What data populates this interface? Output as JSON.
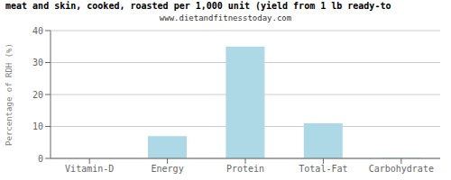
{
  "chart_data": {
    "type": "bar",
    "title": "meat and skin, cooked, roasted per 1,000 unit (yield from 1 lb ready-to",
    "subtitle": "www.dietandfitnesstoday.com",
    "categories": [
      "Vitamin-D",
      "Energy",
      "Protein",
      "Total-Fat",
      "Carbohydrate"
    ],
    "values": [
      0,
      7,
      35,
      11,
      0.3
    ],
    "color": "#add8e6",
    "ylabel": "Percentage of RDH (%)",
    "ylim": [
      0,
      40
    ],
    "yticks": [
      0,
      10,
      20,
      30,
      40
    ],
    "grid": true
  }
}
